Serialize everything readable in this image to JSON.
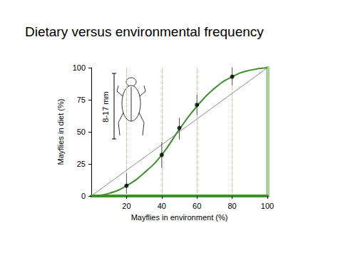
{
  "chart_data": {
    "type": "line",
    "title": "Dietary versus environmental frequency",
    "x_label": "Mayflies in environment (%)",
    "y_label": "Mayflies in diet (%)",
    "xlim": [
      0,
      100
    ],
    "ylim": [
      0,
      100
    ],
    "xticks": [
      20,
      40,
      60,
      80,
      100
    ],
    "yticks": [
      0,
      25,
      50,
      75,
      100
    ],
    "grid": true,
    "annotations": [
      {
        "text": "8-17 mm"
      }
    ],
    "series": [
      {
        "type": "line",
        "color": "#3f8f2f",
        "line_style": "solid",
        "x": [
          0,
          10,
          20,
          30,
          40,
          50,
          60,
          70,
          80,
          90,
          100
        ],
        "values": [
          0,
          2,
          8,
          18,
          32,
          52,
          70,
          84,
          93,
          98,
          100
        ]
      },
      {
        "type": "line",
        "color": "#8c8c8c",
        "line_style": "solid",
        "x": [
          0,
          100
        ],
        "values": [
          0,
          100
        ]
      },
      {
        "type": "scatter",
        "color": "#000000",
        "marker": "circle",
        "x": [
          20,
          40,
          50,
          60,
          80
        ],
        "values": [
          8,
          32,
          53,
          71,
          93
        ],
        "y_low": [
          2,
          22,
          44,
          63,
          86
        ],
        "y_high": [
          18,
          42,
          61,
          79,
          100
        ]
      }
    ]
  }
}
